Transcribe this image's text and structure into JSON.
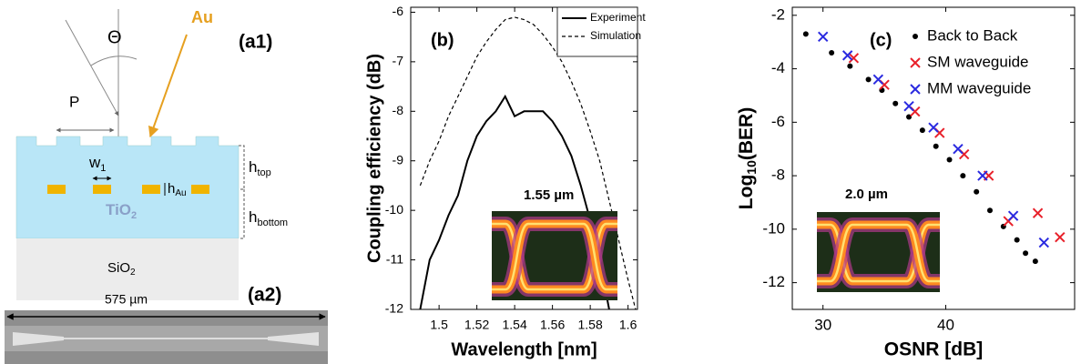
{
  "schematic": {
    "label": "(a1)",
    "theta": "Θ",
    "au": "Au",
    "p": "P",
    "w": {
      "main": "w",
      "sub": "1"
    },
    "h_au": {
      "main": "h",
      "sub": "Au"
    },
    "h_top": {
      "main": "h",
      "sub": "top"
    },
    "h_bottom": {
      "main": "h",
      "sub": "bottom"
    },
    "tio2": {
      "main": "TiO",
      "sub": "2"
    },
    "sio2": {
      "main": "SiO",
      "sub": "2"
    }
  },
  "micrograph": {
    "label": "(a2)",
    "length": "575 µm"
  },
  "chart_data": [
    {
      "type": "line",
      "panel_label": "(b)",
      "xlabel": "Wavelength [nm]",
      "ylabel": "Coupling efficiency (dB)",
      "inset_label": "1.55 µm",
      "x": [
        1.49,
        1.495,
        1.5,
        1.505,
        1.51,
        1.515,
        1.52,
        1.525,
        1.53,
        1.535,
        1.54,
        1.545,
        1.55,
        1.555,
        1.56,
        1.565,
        1.57,
        1.575,
        1.58,
        1.585,
        1.59,
        1.595,
        1.6,
        1.604
      ],
      "series": [
        {
          "name": "Experiment",
          "color": "#000000",
          "dash": false,
          "values": [
            -12,
            -11,
            -10.6,
            -10.1,
            -9.7,
            -9.0,
            -8.5,
            -8.2,
            -8.0,
            -7.7,
            -8.1,
            -8.0,
            -8.0,
            -8.0,
            -8.2,
            -8.5,
            -8.9,
            -9.5,
            -10.2,
            -11.0,
            -12,
            null,
            null,
            null
          ]
        },
        {
          "name": "Simulation",
          "color": "#000000",
          "dash": true,
          "values": [
            -9.5,
            -9.0,
            -8.6,
            -8.1,
            -7.7,
            -7.3,
            -6.9,
            -6.6,
            -6.35,
            -6.15,
            -6.1,
            -6.15,
            -6.25,
            -6.45,
            -6.7,
            -7.0,
            -7.4,
            -7.85,
            -8.4,
            -9.0,
            -9.8,
            -10.6,
            -11.4,
            -12
          ]
        }
      ],
      "xlim": [
        1.485,
        1.605
      ],
      "ylim": [
        -12,
        -5.9
      ],
      "xticks": [
        1.5,
        1.52,
        1.54,
        1.56,
        1.58,
        1.6
      ],
      "yticks": [
        -12,
        -11,
        -10,
        -9,
        -8,
        -7,
        -6
      ],
      "legend": "top-right"
    },
    {
      "type": "scatter",
      "panel_label": "(c)",
      "xlabel": "OSNR [dB]",
      "ylabel": {
        "main": "Log",
        "sub": "10",
        "rest": "(BER)"
      },
      "inset_label": "2.0 µm",
      "series": [
        {
          "name": "Back to Back",
          "color": "#000000",
          "marker": "dot",
          "x": [
            28.6,
            30.7,
            32.2,
            33.7,
            34.8,
            35.9,
            37.0,
            38.1,
            39.2,
            40.3,
            41.4,
            42.5,
            43.6,
            44.7,
            45.8,
            46.5,
            47.3
          ],
          "values": [
            -2.7,
            -3.4,
            -3.9,
            -4.4,
            -4.8,
            -5.3,
            -5.8,
            -6.3,
            -6.9,
            -7.4,
            -8.0,
            -8.6,
            -9.3,
            -9.9,
            -10.4,
            -10.9,
            -11.2
          ]
        },
        {
          "name": "SM waveguide",
          "color": "#e8202a",
          "marker": "x",
          "x": [
            32.5,
            35.0,
            37.5,
            39.5,
            41.5,
            43.5,
            45.1,
            47.5,
            49.3
          ],
          "values": [
            -3.6,
            -4.6,
            -5.6,
            -6.4,
            -7.2,
            -8.0,
            -9.7,
            -9.4,
            -10.3
          ]
        },
        {
          "name": "MM waveguide",
          "color": "#2a2ae0",
          "marker": "x",
          "x": [
            30.0,
            32.0,
            34.5,
            37.0,
            39.0,
            41.0,
            43.0,
            45.5,
            48.0
          ],
          "values": [
            -2.8,
            -3.5,
            -4.4,
            -5.4,
            -6.2,
            -7.0,
            -8.0,
            -9.5,
            -10.5
          ]
        }
      ],
      "xlim": [
        27.5,
        50.5
      ],
      "ylim": [
        -13,
        -1.7
      ],
      "xticks": [
        30,
        40
      ],
      "yticks": [
        -12,
        -10,
        -8,
        -6,
        -4,
        -2
      ],
      "legend": "top-right"
    }
  ]
}
